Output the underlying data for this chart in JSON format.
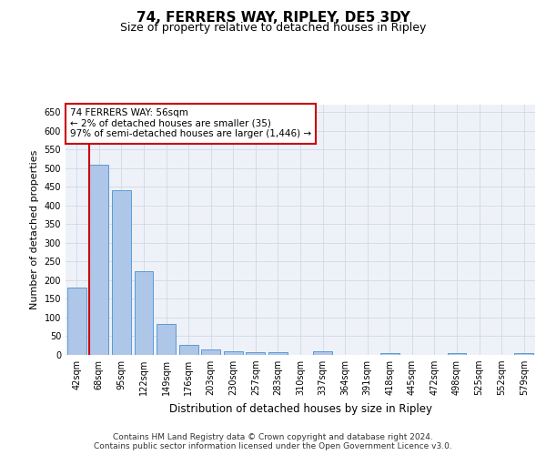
{
  "title": "74, FERRERS WAY, RIPLEY, DE5 3DY",
  "subtitle": "Size of property relative to detached houses in Ripley",
  "xlabel": "Distribution of detached houses by size in Ripley",
  "ylabel": "Number of detached properties",
  "categories": [
    "42sqm",
    "68sqm",
    "95sqm",
    "122sqm",
    "149sqm",
    "176sqm",
    "203sqm",
    "230sqm",
    "257sqm",
    "283sqm",
    "310sqm",
    "337sqm",
    "364sqm",
    "391sqm",
    "418sqm",
    "445sqm",
    "472sqm",
    "498sqm",
    "525sqm",
    "552sqm",
    "579sqm"
  ],
  "values": [
    180,
    510,
    440,
    225,
    83,
    28,
    15,
    10,
    8,
    7,
    0,
    10,
    0,
    0,
    5,
    0,
    0,
    5,
    0,
    0,
    5
  ],
  "bar_color": "#aec6e8",
  "bar_edge_color": "#5b9bd5",
  "highlight_line_color": "#cc0000",
  "annotation_box_text": "74 FERRERS WAY: 56sqm\n← 2% of detached houses are smaller (35)\n97% of semi-detached houses are larger (1,446) →",
  "annotation_box_color": "#cc0000",
  "annotation_box_fill": "#ffffff",
  "ylim": [
    0,
    670
  ],
  "yticks": [
    0,
    50,
    100,
    150,
    200,
    250,
    300,
    350,
    400,
    450,
    500,
    550,
    600,
    650
  ],
  "footer_text": "Contains HM Land Registry data © Crown copyright and database right 2024.\nContains public sector information licensed under the Open Government Licence v3.0.",
  "grid_color": "#d0d8e8",
  "background_color": "#eef2f8",
  "title_fontsize": 11,
  "subtitle_fontsize": 9,
  "xlabel_fontsize": 8.5,
  "ylabel_fontsize": 8,
  "tick_fontsize": 7,
  "annotation_fontsize": 7.5,
  "footer_fontsize": 6.5
}
